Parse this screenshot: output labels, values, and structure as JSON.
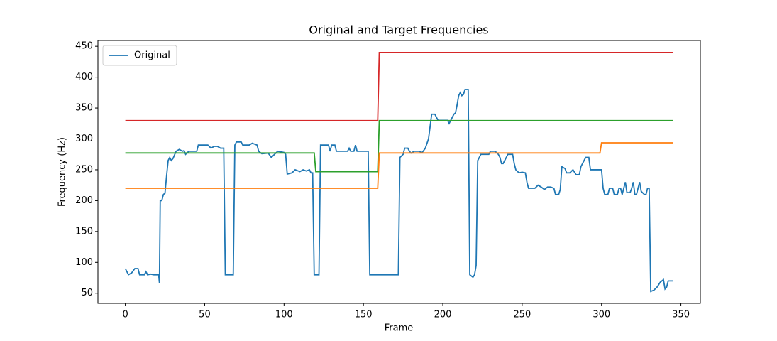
{
  "chart_data": {
    "type": "line",
    "title": "Original and Target Frequencies",
    "x_label": "Frame",
    "y_label": "Frequency (Hz)",
    "xlim": [
      -17.25,
      362.25
    ],
    "ylim": [
      33.6,
      459.4
    ],
    "xticks": [
      0,
      50,
      100,
      150,
      200,
      250,
      300,
      350
    ],
    "yticks": [
      50,
      100,
      150,
      200,
      250,
      300,
      350,
      400,
      450
    ],
    "legend": "upper left",
    "series": [
      {
        "name": "Original",
        "color": "#1f77b4",
        "x": [
          0,
          2,
          4,
          6,
          8,
          9,
          12,
          13,
          14,
          16,
          18,
          21,
          21.5,
          22,
          23,
          24,
          25,
          26,
          27,
          28,
          29,
          30,
          32,
          34,
          36,
          37,
          38,
          40,
          45,
          46,
          52,
          54,
          56,
          58,
          60,
          62,
          63,
          68,
          69,
          70,
          73,
          74,
          78,
          80,
          83,
          84,
          86,
          90,
          92,
          94,
          96,
          100,
          101,
          102,
          105,
          107,
          110,
          112,
          114,
          116,
          117,
          118,
          119,
          122,
          123,
          128,
          129,
          130,
          132,
          133,
          137,
          140,
          141,
          142,
          144,
          145,
          146,
          153,
          154,
          158,
          172,
          173,
          175,
          176,
          178,
          179,
          180,
          182,
          185,
          187,
          189,
          191,
          192,
          193,
          195,
          197,
          200,
          203,
          204,
          205,
          207,
          208,
          209,
          210,
          211,
          212,
          213,
          214,
          216,
          217,
          219,
          220,
          221,
          222,
          223,
          224,
          229,
          230,
          233,
          235,
          236,
          237,
          238,
          239,
          240,
          241,
          244,
          245,
          246,
          248,
          250,
          252,
          253,
          254,
          258,
          260,
          262,
          264,
          266,
          268,
          270,
          271,
          273,
          274,
          275,
          277,
          278,
          280,
          282,
          284,
          286,
          287,
          289,
          290,
          292,
          293,
          299,
          300,
          301,
          302,
          304,
          305,
          307,
          308,
          310,
          311,
          312,
          313,
          314,
          315,
          316,
          318,
          319,
          320,
          321,
          322,
          323,
          324,
          325,
          327,
          328,
          329,
          330,
          331,
          333,
          335,
          337,
          338,
          339,
          340,
          341,
          342,
          345
        ],
        "values": [
          90,
          80,
          83,
          90,
          90,
          80,
          80,
          85,
          80,
          81,
          80,
          80,
          67,
          200,
          200,
          210,
          212,
          240,
          265,
          270,
          265,
          268,
          280,
          283,
          280,
          281,
          275,
          280,
          280,
          290,
          290,
          285,
          288,
          288,
          285,
          285,
          80,
          80,
          290,
          295,
          295,
          290,
          290,
          293,
          290,
          280,
          276,
          277,
          270,
          275,
          280,
          278,
          275,
          243,
          245,
          250,
          247,
          250,
          248,
          250,
          245,
          245,
          80,
          80,
          290,
          290,
          280,
          290,
          290,
          280,
          280,
          280,
          285,
          280,
          280,
          290,
          280,
          280,
          80,
          80,
          80,
          270,
          275,
          285,
          285,
          280,
          277,
          280,
          280,
          278,
          285,
          300,
          320,
          340,
          340,
          330,
          330,
          330,
          325,
          330,
          340,
          342,
          355,
          370,
          375,
          370,
          372,
          380,
          380,
          80,
          76,
          80,
          95,
          265,
          270,
          275,
          275,
          280,
          280,
          275,
          270,
          260,
          260,
          265,
          270,
          275,
          275,
          260,
          250,
          245,
          246,
          245,
          230,
          220,
          220,
          225,
          222,
          218,
          222,
          222,
          220,
          210,
          210,
          218,
          255,
          252,
          245,
          245,
          250,
          242,
          242,
          255,
          265,
          270,
          270,
          250,
          250,
          250,
          220,
          210,
          210,
          220,
          220,
          210,
          210,
          220,
          220,
          210,
          220,
          230,
          213,
          213,
          220,
          230,
          210,
          210,
          220,
          230,
          215,
          210,
          210,
          220,
          220,
          53,
          55,
          60,
          68,
          70,
          72,
          57,
          60,
          70,
          70
        ]
      },
      {
        "color": "#d62728",
        "x": [
          0,
          159,
          160,
          345
        ],
        "values": [
          329.6,
          329.6,
          440,
          440
        ]
      },
      {
        "color": "#2ca02c",
        "x": [
          0,
          119,
          120,
          159,
          160,
          345
        ],
        "values": [
          277.2,
          277.2,
          246.9,
          246.9,
          329.6,
          329.6
        ]
      },
      {
        "color": "#ff7f0e",
        "x": [
          0,
          159,
          160,
          299,
          300,
          345
        ],
        "values": [
          220,
          220,
          277.2,
          277.2,
          293.7,
          293.7
        ]
      }
    ]
  }
}
